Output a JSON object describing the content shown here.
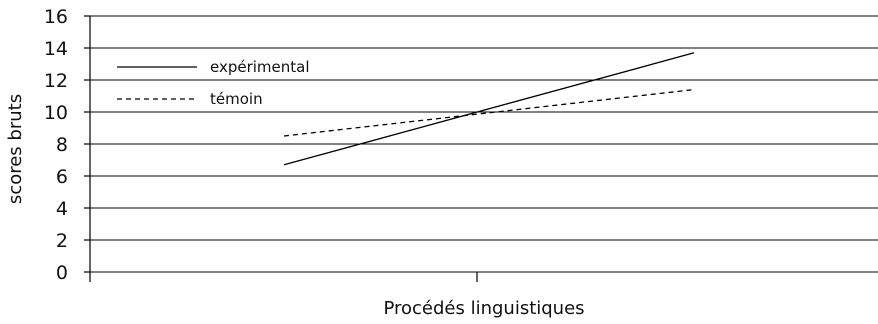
{
  "chart_data": {
    "type": "line",
    "title": "",
    "xlabel": "Procédés linguistiques",
    "ylabel": "scores bruts",
    "ylim": [
      0,
      16
    ],
    "yticks": [
      0,
      2,
      4,
      6,
      8,
      10,
      12,
      14,
      16
    ],
    "grid": true,
    "legend_position": "top-left",
    "series": [
      {
        "name": "expérimental",
        "line_style": "solid",
        "color": "#000000",
        "points": [
          {
            "x": -1,
            "y": 6.7
          },
          {
            "x": 1,
            "y": 13.7
          }
        ]
      },
      {
        "name": "témoin",
        "line_style": "dashed",
        "color": "#000000",
        "points": [
          {
            "x": -1,
            "y": 8.5
          },
          {
            "x": 1,
            "y": 11.4
          }
        ]
      }
    ]
  }
}
